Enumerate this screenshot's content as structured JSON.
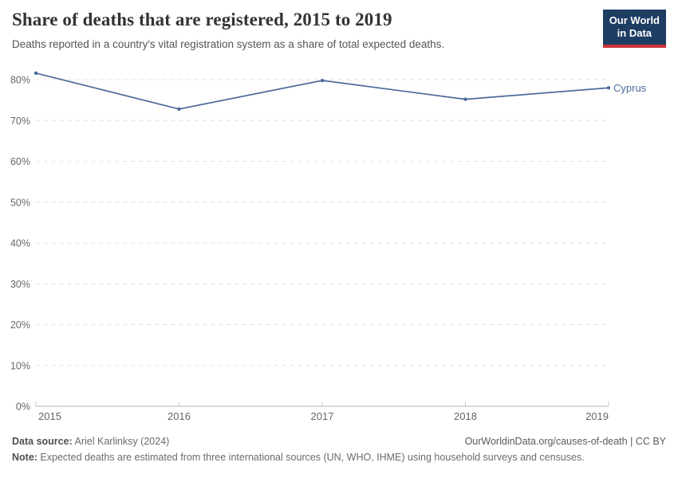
{
  "header": {
    "title": "Share of deaths that are registered, 2015 to 2019",
    "subtitle": "Deaths reported in a country's vital registration system as a share of total expected deaths.",
    "logo": {
      "line1": "Our World",
      "line2": "in Data",
      "bg_color": "#1d3d63",
      "accent_color": "#cc3137"
    }
  },
  "chart_data": {
    "type": "line",
    "title": "Share of deaths that are registered, 2015 to 2019",
    "xlabel": "",
    "ylabel": "",
    "x": [
      "2015",
      "2016",
      "2017",
      "2018",
      "2019"
    ],
    "series": [
      {
        "name": "Cyprus",
        "color": "#4C6A9C",
        "values": [
          81.6,
          72.8,
          79.8,
          75.2,
          78.0
        ]
      }
    ],
    "ylim": [
      0,
      80
    ],
    "yticks": [
      {
        "v": 0,
        "label": "0%"
      },
      {
        "v": 10,
        "label": "10%"
      },
      {
        "v": 20,
        "label": "20%"
      },
      {
        "v": 30,
        "label": "30%"
      },
      {
        "v": 40,
        "label": "40%"
      },
      {
        "v": 50,
        "label": "50%"
      },
      {
        "v": 60,
        "label": "60%"
      },
      {
        "v": 70,
        "label": "70%"
      },
      {
        "v": 80,
        "label": "80%"
      }
    ],
    "grid": "horizontal-dashed",
    "legend_position": "end-of-line-label",
    "grid_color": "#dcdcdc",
    "axis_color": "#b3b3b3",
    "tick_color": "#c9c9c9",
    "axis_text_color": "#666666"
  },
  "footer": {
    "datasource_label": "Data source:",
    "datasource_value": " Ariel Karlinksy (2024)",
    "link": "OurWorldinData.org/causes-of-death | CC BY",
    "note_label": "Note:",
    "note_value": " Expected deaths are estimated from three international sources (UN, WHO, IHME) using household surveys and censuses."
  }
}
